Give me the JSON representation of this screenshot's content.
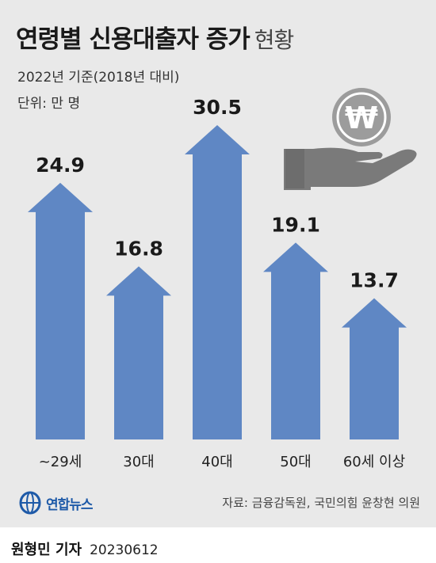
{
  "title": {
    "main": "연령별 신용대출자 증가",
    "sub": "현황"
  },
  "subtitle": "2022년 기준(2018년 대비)",
  "unit": "단위: 만 명",
  "chart_data": {
    "type": "bar",
    "categories": [
      "~29세",
      "30대",
      "40대",
      "50대",
      "60세 이상"
    ],
    "values": [
      24.9,
      16.8,
      30.5,
      19.1,
      13.7
    ],
    "value_labels": [
      "24.9",
      "16.8",
      "30.5",
      "19.1",
      "13.7"
    ],
    "ylim": [
      0,
      30.5
    ],
    "bar_shape": "arrow",
    "bar_color": "#5f87c4",
    "grid": false
  },
  "illustration": {
    "icon": "hand-holding-won-coin-icon",
    "coin_color": "#9a9a9a",
    "hand_color": "#7a7a7a"
  },
  "logo": {
    "icon": "yonhap-logo-icon",
    "text": "연합뉴스"
  },
  "source": "자료: 금융감독원, 국민의힘 윤창현 의원",
  "byline": {
    "reporter": "원형민 기자",
    "date": "20230612"
  }
}
